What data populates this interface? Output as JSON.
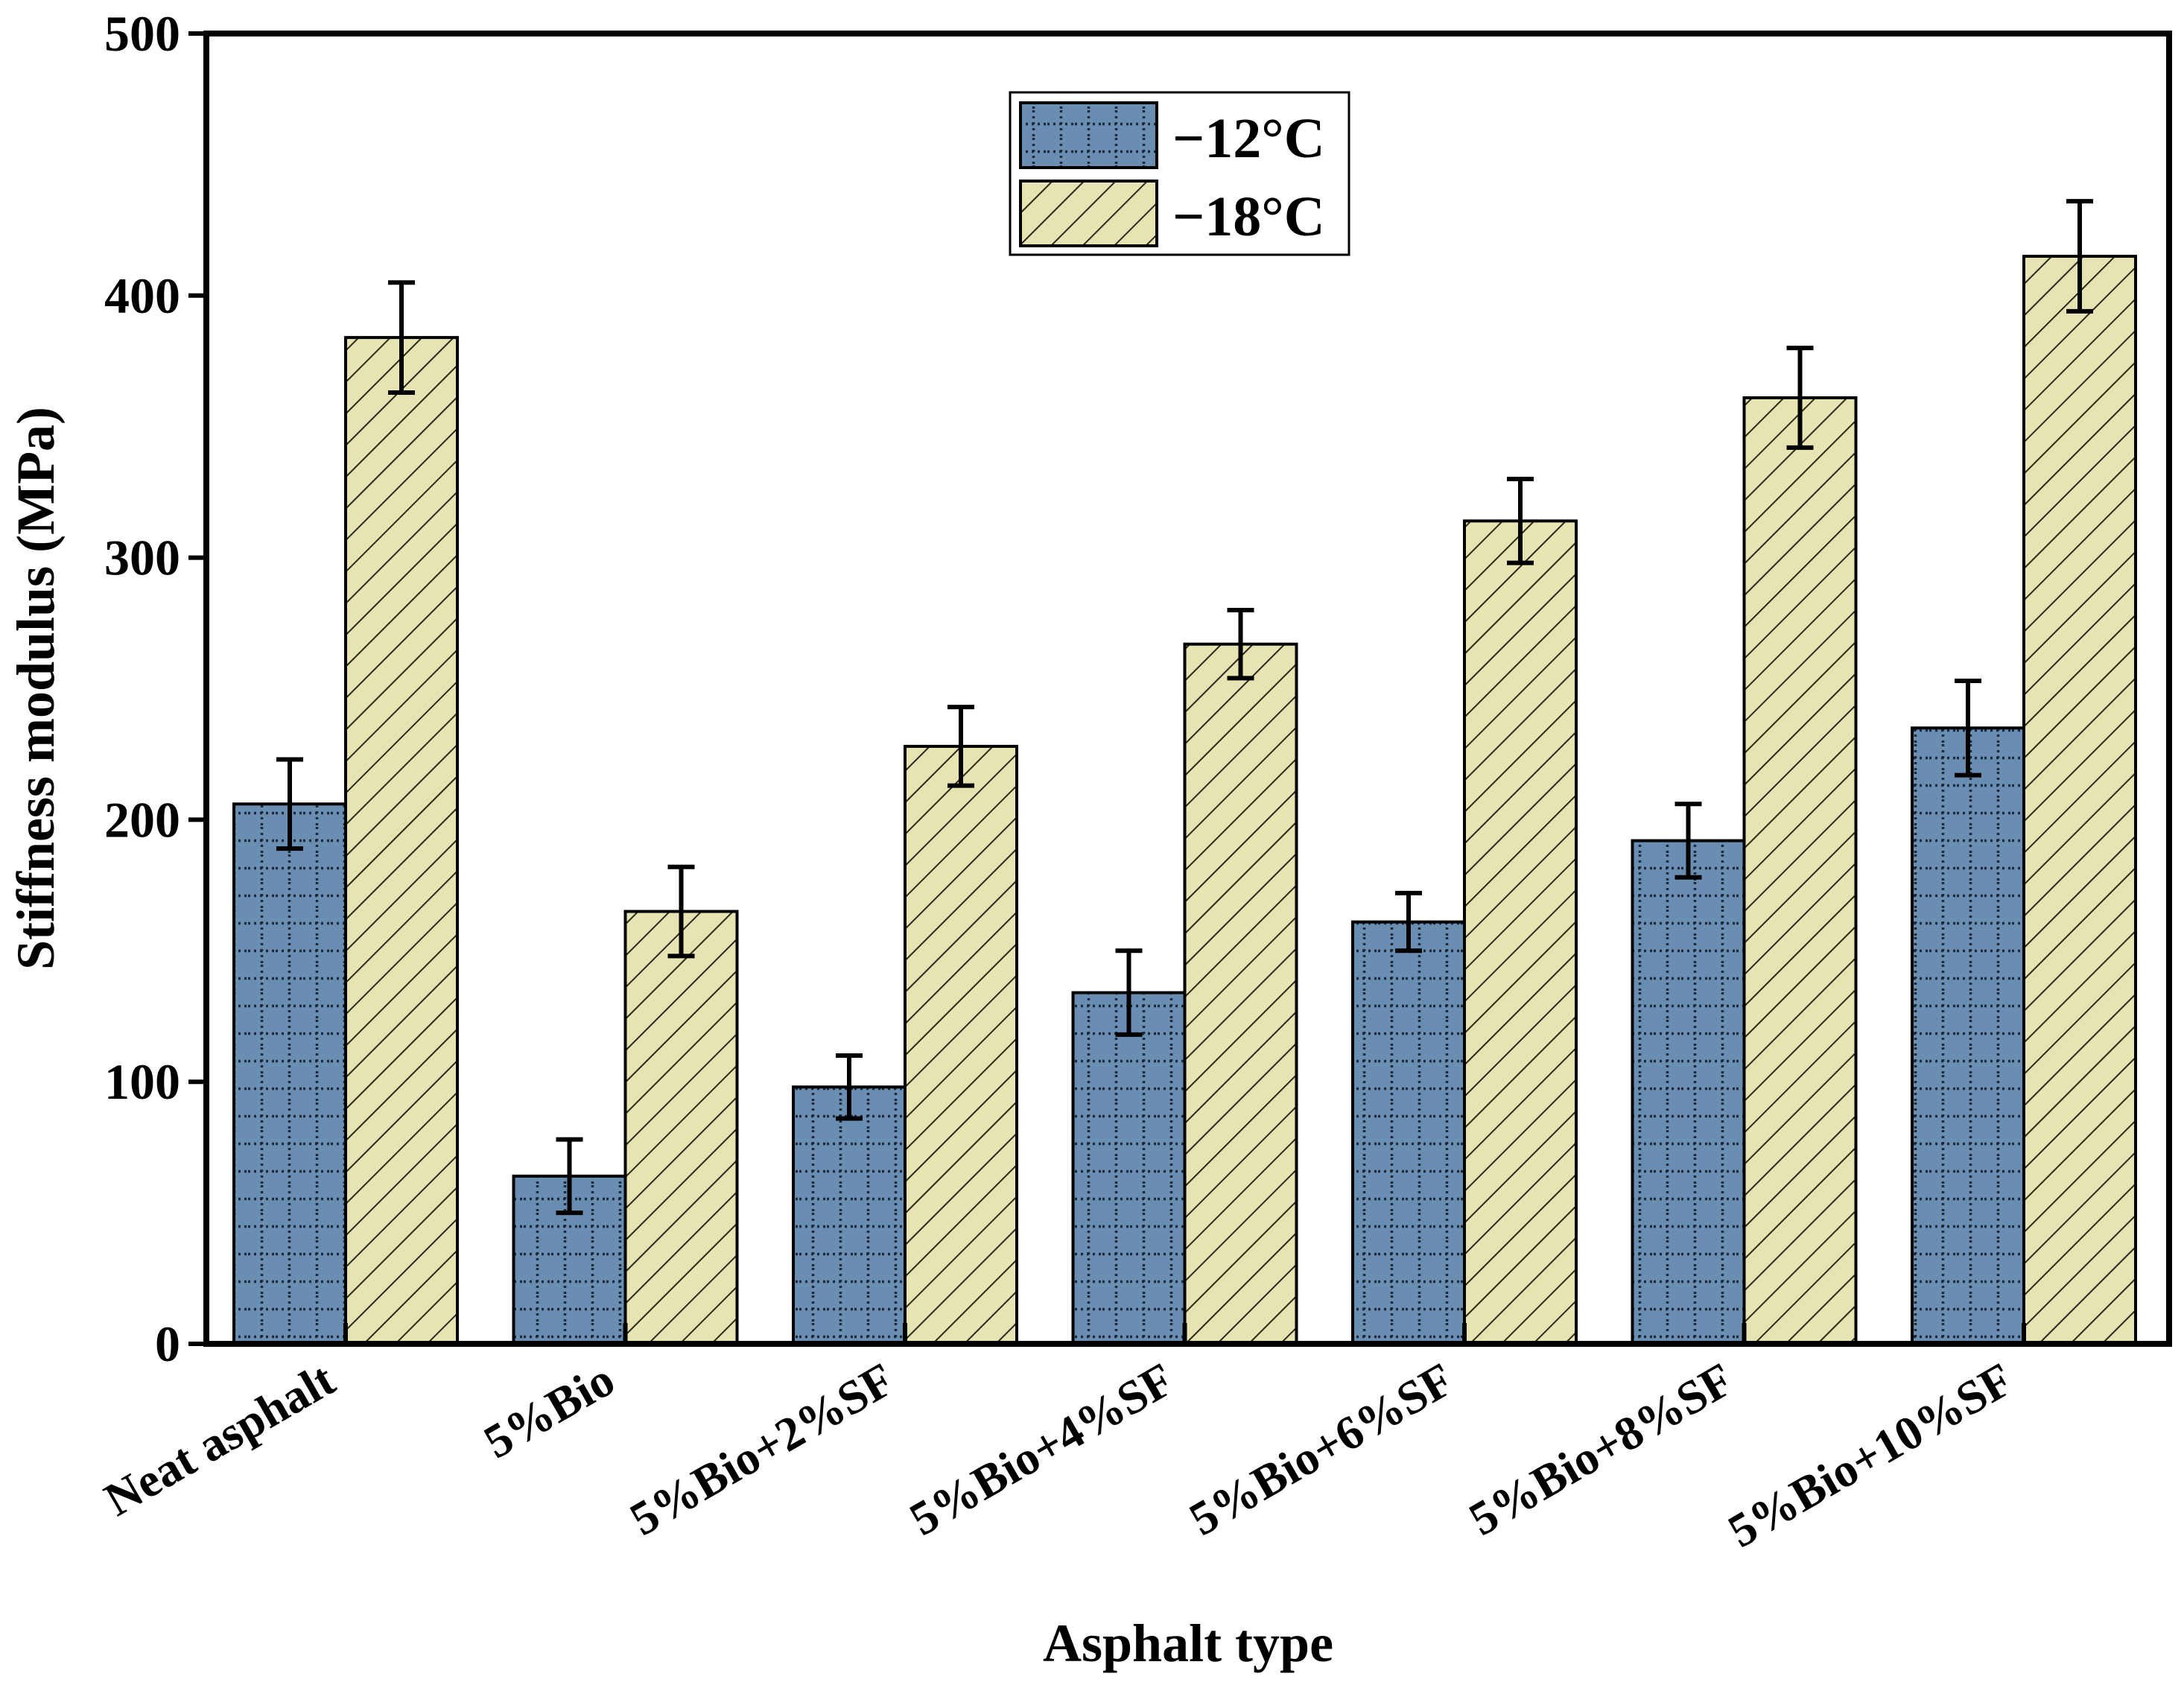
{
  "chart_data": {
    "type": "bar",
    "title": "",
    "xlabel": "Asphalt type",
    "ylabel": "Stiffness modulus (MPa)",
    "ylim": [
      0,
      500
    ],
    "yticks": [
      "0",
      "100",
      "200",
      "300",
      "400",
      "500"
    ],
    "ytick_values": [
      0,
      100,
      200,
      300,
      400,
      500
    ],
    "categories": [
      "Neat asphalt",
      "5%Bio",
      "5%Bio+2%SF",
      "5%Bio+4%SF",
      "5%Bio+6%SF",
      "5%Bio+8%SF",
      "5%Bio+10%SF"
    ],
    "series": [
      {
        "name": "−12°C",
        "pattern": "grid",
        "color": "#6a8db2",
        "values": [
          206,
          64,
          98,
          134,
          161,
          192,
          235
        ],
        "errors": [
          17,
          14,
          12,
          16,
          11,
          14,
          18
        ]
      },
      {
        "name": "−18°C",
        "pattern": "hatch",
        "color": "#e6e4b2",
        "values": [
          384,
          165,
          228,
          267,
          314,
          361,
          415
        ],
        "errors": [
          21,
          17,
          15,
          13,
          16,
          19,
          21
        ]
      }
    ],
    "legend_position": "top-center",
    "grid": false
  }
}
